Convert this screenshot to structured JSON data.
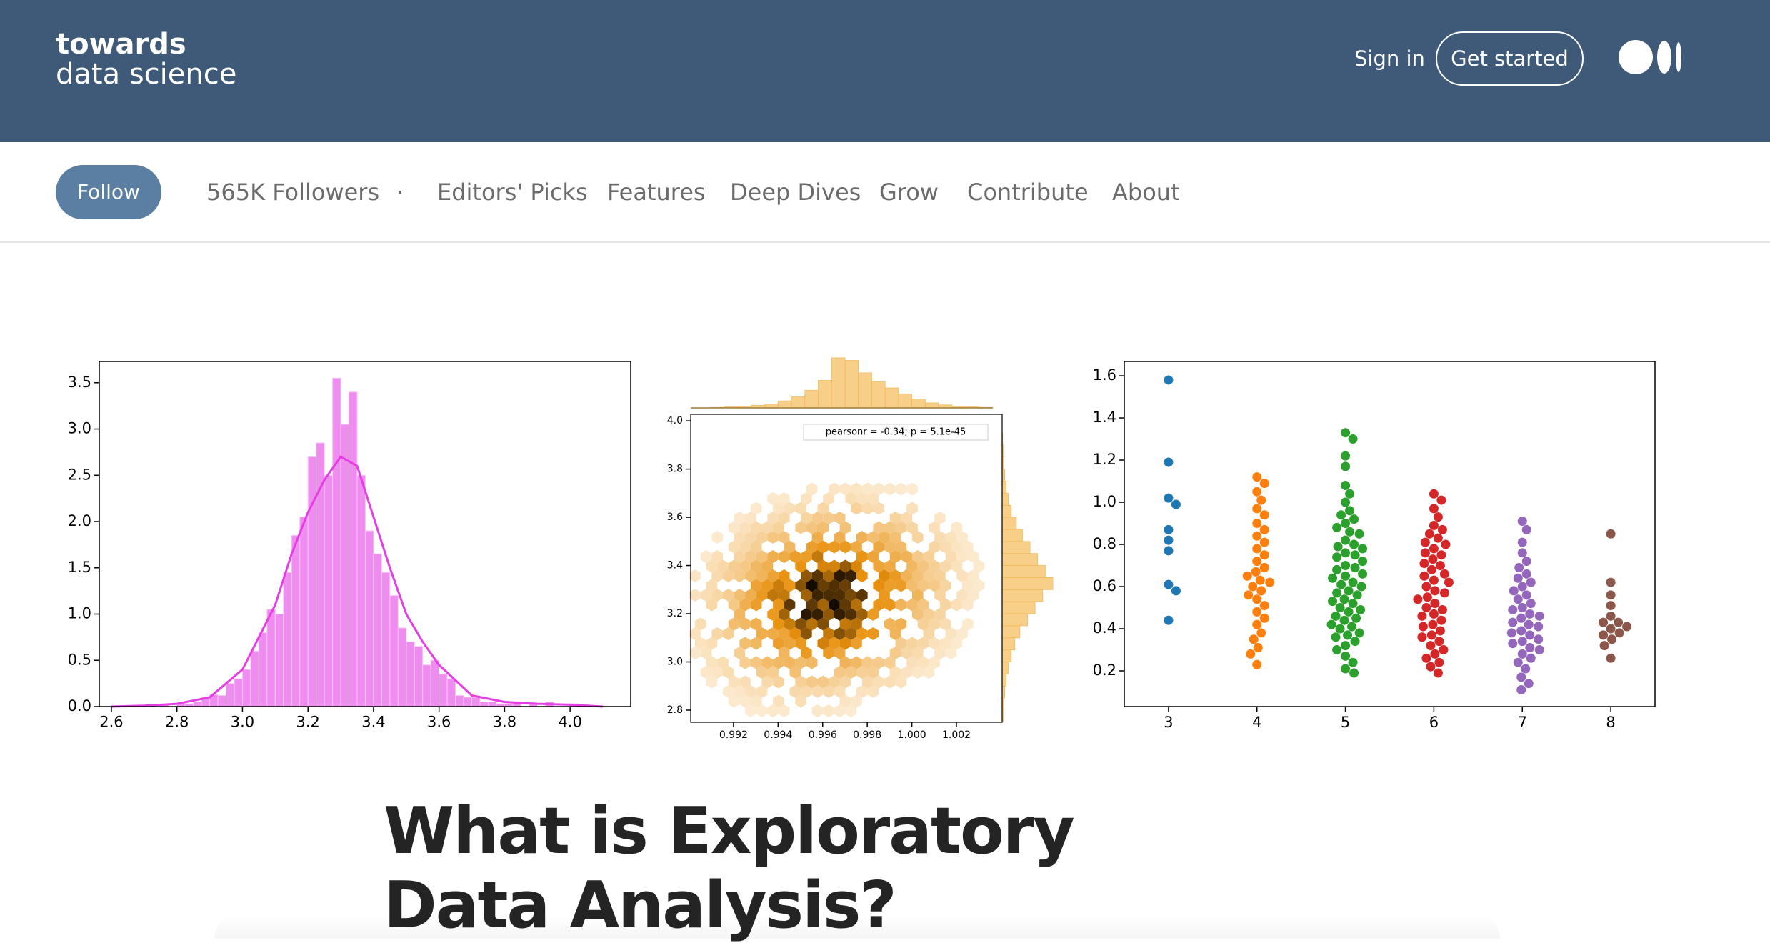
{
  "header": {
    "logo_line1": "towards",
    "logo_line2": "data science",
    "sign_in": "Sign in",
    "get_started": "Get started"
  },
  "nav": {
    "follow": "Follow",
    "followers": "565K Followers",
    "separator": "·",
    "links": [
      "Editors' Picks",
      "Features",
      "Deep Dives",
      "Grow",
      "Contribute",
      "About"
    ]
  },
  "chart_data": [
    {
      "type": "histogram",
      "bins": [
        2.75,
        2.775,
        2.8,
        2.825,
        2.85,
        2.875,
        2.9,
        2.925,
        2.95,
        2.975,
        3.0,
        3.025,
        3.05,
        3.075,
        3.1,
        3.125,
        3.15,
        3.175,
        3.2,
        3.225,
        3.25,
        3.275,
        3.3,
        3.325,
        3.35,
        3.375,
        3.4,
        3.425,
        3.45,
        3.475,
        3.5,
        3.525,
        3.55,
        3.575,
        3.6,
        3.625,
        3.65,
        3.675,
        3.7,
        3.725,
        3.75,
        3.775,
        3.8,
        3.825,
        3.85,
        3.875,
        3.9,
        3.925,
        3.95,
        3.975,
        4.0,
        4.025,
        4.05
      ],
      "values": [
        0.02,
        0,
        0.03,
        0.03,
        0.05,
        0.1,
        0.13,
        0.12,
        0.25,
        0.3,
        0.4,
        0.6,
        0.8,
        1.05,
        1.0,
        1.45,
        1.85,
        2.05,
        2.7,
        2.85,
        2.5,
        3.55,
        3.05,
        3.4,
        2.5,
        1.9,
        1.65,
        1.45,
        1.2,
        0.85,
        0.7,
        0.65,
        0.45,
        0.5,
        0.35,
        0.3,
        0.12,
        0.1,
        0.1,
        0.05,
        0.05,
        0.03,
        0.03,
        0.05,
        0,
        0.03,
        0,
        0.05,
        0,
        0,
        0.03,
        0.02
      ],
      "color": "#ef8cef",
      "kde": {
        "x": [
          2.6,
          2.7,
          2.8,
          2.9,
          3.0,
          3.1,
          3.15,
          3.2,
          3.25,
          3.3,
          3.35,
          3.4,
          3.45,
          3.5,
          3.55,
          3.6,
          3.7,
          3.8,
          3.9,
          4.0,
          4.1
        ],
        "values": [
          0,
          0.01,
          0.03,
          0.1,
          0.4,
          1.1,
          1.65,
          2.1,
          2.45,
          2.7,
          2.6,
          2.05,
          1.5,
          1.0,
          0.7,
          0.45,
          0.12,
          0.05,
          0.03,
          0.02,
          0
        ],
        "color": "#e43ee4"
      },
      "xlim": [
        2.563,
        4.185
      ],
      "ylim": [
        0,
        3.73
      ],
      "xticks": [
        2.6,
        2.8,
        {
          "value": 3,
          "label": "3.0"
        },
        3.2,
        3.4,
        3.6,
        3.8,
        {
          "value": 4,
          "label": "4.0"
        }
      ],
      "yticks": [
        {
          "value": 0,
          "label": "0.0"
        },
        0.5,
        {
          "value": 1,
          "label": "1.0"
        },
        1.5,
        {
          "value": 2,
          "label": "2.0"
        },
        2.5,
        {
          "value": 3,
          "label": "3.0"
        },
        3.5
      ]
    },
    {
      "type": "hexbin",
      "annotation": "pearsonr = -0.34; p = 5.1e-45",
      "xlim": [
        0.99008,
        1.00405
      ],
      "ylim": [
        2.7496,
        4.027
      ],
      "xticks": [
        0.992,
        0.994,
        0.996,
        0.998,
        {
          "value": 1,
          "label": "1.000"
        },
        1.002
      ],
      "yticks": [
        2.8,
        {
          "value": 3,
          "label": "3.0"
        },
        3.2,
        3.4,
        3.6,
        3.8,
        {
          "value": 4,
          "label": "4.0"
        }
      ],
      "color": "#f7cf88",
      "hex_color": "#e8900c",
      "top_margin": {
        "bins": [
          0.991,
          0.9916,
          0.9922,
          0.9928,
          0.9934,
          0.994,
          0.9946,
          0.9952,
          0.9958,
          0.9964,
          0.997,
          0.9976,
          0.9982,
          0.9988,
          0.9994,
          1.0,
          1.0006,
          1.0012,
          1.0018,
          1.0024,
          1.003,
          1.0036
        ],
        "values": [
          1,
          2,
          3,
          5,
          8,
          14,
          22,
          35,
          55,
          100,
          95,
          70,
          52,
          40,
          28,
          18,
          10,
          6,
          3,
          2,
          1
        ],
        "ylim": [
          0,
          100
        ]
      },
      "right_margin": {
        "bins": [
          2.75,
          2.8,
          2.85,
          2.9,
          2.95,
          3.0,
          3.05,
          3.1,
          3.15,
          3.2,
          3.25,
          3.3,
          3.35,
          3.4,
          3.45,
          3.5,
          3.55,
          3.6,
          3.65,
          3.7,
          3.75,
          3.8,
          3.85,
          3.9,
          3.95
        ],
        "values": [
          2,
          3,
          5,
          8,
          12,
          18,
          25,
          35,
          50,
          65,
          80,
          100,
          85,
          70,
          55,
          40,
          28,
          18,
          12,
          8,
          5,
          3,
          2,
          1
        ],
        "xlim": [
          0,
          100
        ]
      }
    },
    {
      "type": "swarm",
      "categories": [
        "3",
        "4",
        "5",
        "6",
        "7",
        "8"
      ],
      "colors": [
        "#1f77b4",
        "#ff7f0e",
        "#2ca02c",
        "#d62728",
        "#9467bd",
        "#8c564b"
      ],
      "values": [
        [
          1.58,
          1.19,
          1.02,
          0.99,
          0.87,
          0.82,
          0.77,
          0.61,
          0.58,
          0.44
        ],
        [
          1.12,
          1.09,
          1.05,
          1.01,
          0.97,
          0.94,
          0.9,
          0.87,
          0.84,
          0.81,
          0.78,
          0.75,
          0.72,
          0.69,
          0.67,
          0.65,
          0.63,
          0.62,
          0.6,
          0.58,
          0.56,
          0.54,
          0.51,
          0.48,
          0.45,
          0.42,
          0.38,
          0.35,
          0.31,
          0.28,
          0.23
        ],
        [
          1.33,
          1.3,
          1.22,
          1.17,
          1.08,
          1.04,
          1.0,
          0.96,
          0.94,
          0.92,
          0.9,
          0.88,
          0.86,
          0.85,
          0.82,
          0.8,
          0.79,
          0.78,
          0.76,
          0.75,
          0.74,
          0.72,
          0.7,
          0.69,
          0.68,
          0.66,
          0.65,
          0.64,
          0.62,
          0.61,
          0.6,
          0.58,
          0.57,
          0.56,
          0.54,
          0.53,
          0.52,
          0.5,
          0.49,
          0.48,
          0.46,
          0.45,
          0.44,
          0.42,
          0.41,
          0.4,
          0.38,
          0.37,
          0.36,
          0.34,
          0.32,
          0.3,
          0.27,
          0.24,
          0.21,
          0.19
        ],
        [
          1.04,
          1.01,
          0.97,
          0.93,
          0.89,
          0.87,
          0.85,
          0.83,
          0.81,
          0.8,
          0.78,
          0.76,
          0.75,
          0.73,
          0.71,
          0.7,
          0.68,
          0.66,
          0.65,
          0.63,
          0.62,
          0.6,
          0.58,
          0.57,
          0.55,
          0.54,
          0.52,
          0.5,
          0.49,
          0.47,
          0.46,
          0.44,
          0.42,
          0.41,
          0.39,
          0.37,
          0.36,
          0.34,
          0.32,
          0.3,
          0.28,
          0.26,
          0.24,
          0.22,
          0.19
        ],
        [
          0.91,
          0.87,
          0.81,
          0.76,
          0.72,
          0.69,
          0.66,
          0.64,
          0.62,
          0.6,
          0.58,
          0.56,
          0.54,
          0.52,
          0.5,
          0.49,
          0.47,
          0.46,
          0.45,
          0.43,
          0.42,
          0.41,
          0.39,
          0.38,
          0.37,
          0.35,
          0.34,
          0.33,
          0.31,
          0.3,
          0.28,
          0.26,
          0.24,
          0.21,
          0.17,
          0.14,
          0.11
        ],
        [
          0.85,
          0.62,
          0.56,
          0.51,
          0.46,
          0.43,
          0.43,
          0.41,
          0.4,
          0.38,
          0.37,
          0.35,
          0.32,
          0.26
        ]
      ],
      "ylim": [
        0.0305,
        1.668
      ],
      "yticks": [
        0.2,
        0.4,
        0.6,
        0.8,
        {
          "value": 1,
          "label": "1.0"
        },
        1.2,
        1.4,
        1.6
      ]
    }
  ],
  "article": {
    "title": "What is Exploratory Data Analysis?"
  }
}
